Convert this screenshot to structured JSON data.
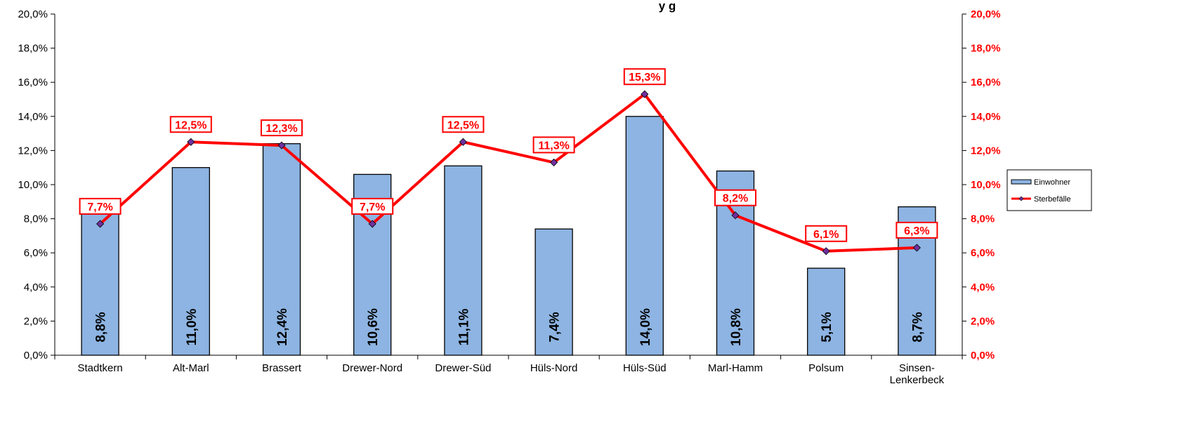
{
  "chart_data": {
    "type": "bar",
    "title_fragment": "y      g",
    "categories": [
      "Stadtkern",
      "Alt-Marl",
      "Brassert",
      "Drewer-Nord",
      "Drewer-Süd",
      "Hüls-Nord",
      "Hüls-Süd",
      "Marl-Hamm",
      "Polsum",
      "Sinsen-Lenkerbeck"
    ],
    "category_lines": [
      [
        "Stadtkern"
      ],
      [
        "Alt-Marl"
      ],
      [
        "Brassert"
      ],
      [
        "Drewer-Nord"
      ],
      [
        "Drewer-Süd"
      ],
      [
        "Hüls-Nord"
      ],
      [
        "Hüls-Süd"
      ],
      [
        "Marl-Hamm"
      ],
      [
        "Polsum"
      ],
      [
        "Sinsen-",
        "Lenkerbeck"
      ]
    ],
    "series": [
      {
        "name": "Einwohner",
        "type": "bar",
        "axis": "left",
        "color": "#8db4e2",
        "values": [
          8.8,
          11.0,
          12.4,
          10.6,
          11.1,
          7.4,
          14.0,
          10.8,
          5.1,
          8.7
        ],
        "labels": [
          "8,8%",
          "11,0%",
          "12,4%",
          "10,6%",
          "11,1%",
          "7,4%",
          "14,0%",
          "10,8%",
          "5,1%",
          "8,7%"
        ]
      },
      {
        "name": "Sterbefälle",
        "type": "line",
        "axis": "right",
        "color": "#ff0000",
        "marker_color": "#7030a0",
        "values": [
          7.7,
          12.5,
          12.3,
          7.7,
          12.5,
          11.3,
          15.3,
          8.2,
          6.1,
          6.3
        ],
        "labels": [
          "7,7%",
          "12,5%",
          "12,3%",
          "7,7%",
          "12,5%",
          "11,3%",
          "15,3%",
          "8,2%",
          "6,1%",
          "6,3%"
        ]
      }
    ],
    "y_left": {
      "lim": [
        0,
        20
      ],
      "ticks": [
        0,
        2,
        4,
        6,
        8,
        10,
        12,
        14,
        16,
        18,
        20
      ],
      "tick_labels": [
        "0,0%",
        "2,0%",
        "4,0%",
        "6,0%",
        "8,0%",
        "10,0%",
        "12,0%",
        "14,0%",
        "16,0%",
        "18,0%",
        "20,0%"
      ]
    },
    "y_right": {
      "lim": [
        0,
        20
      ],
      "ticks": [
        0,
        2,
        4,
        6,
        8,
        10,
        12,
        14,
        16,
        18,
        20
      ],
      "tick_labels": [
        "0,0%",
        "2,0%",
        "4,0%",
        "6,0%",
        "8,0%",
        "10,0%",
        "12,0%",
        "14,0%",
        "16,0%",
        "18,0%",
        "20,0%"
      ],
      "color": "#ff0000"
    },
    "grid": false,
    "legend": {
      "position": "right",
      "entries": [
        "Einwohner",
        "Sterbefälle"
      ]
    }
  }
}
